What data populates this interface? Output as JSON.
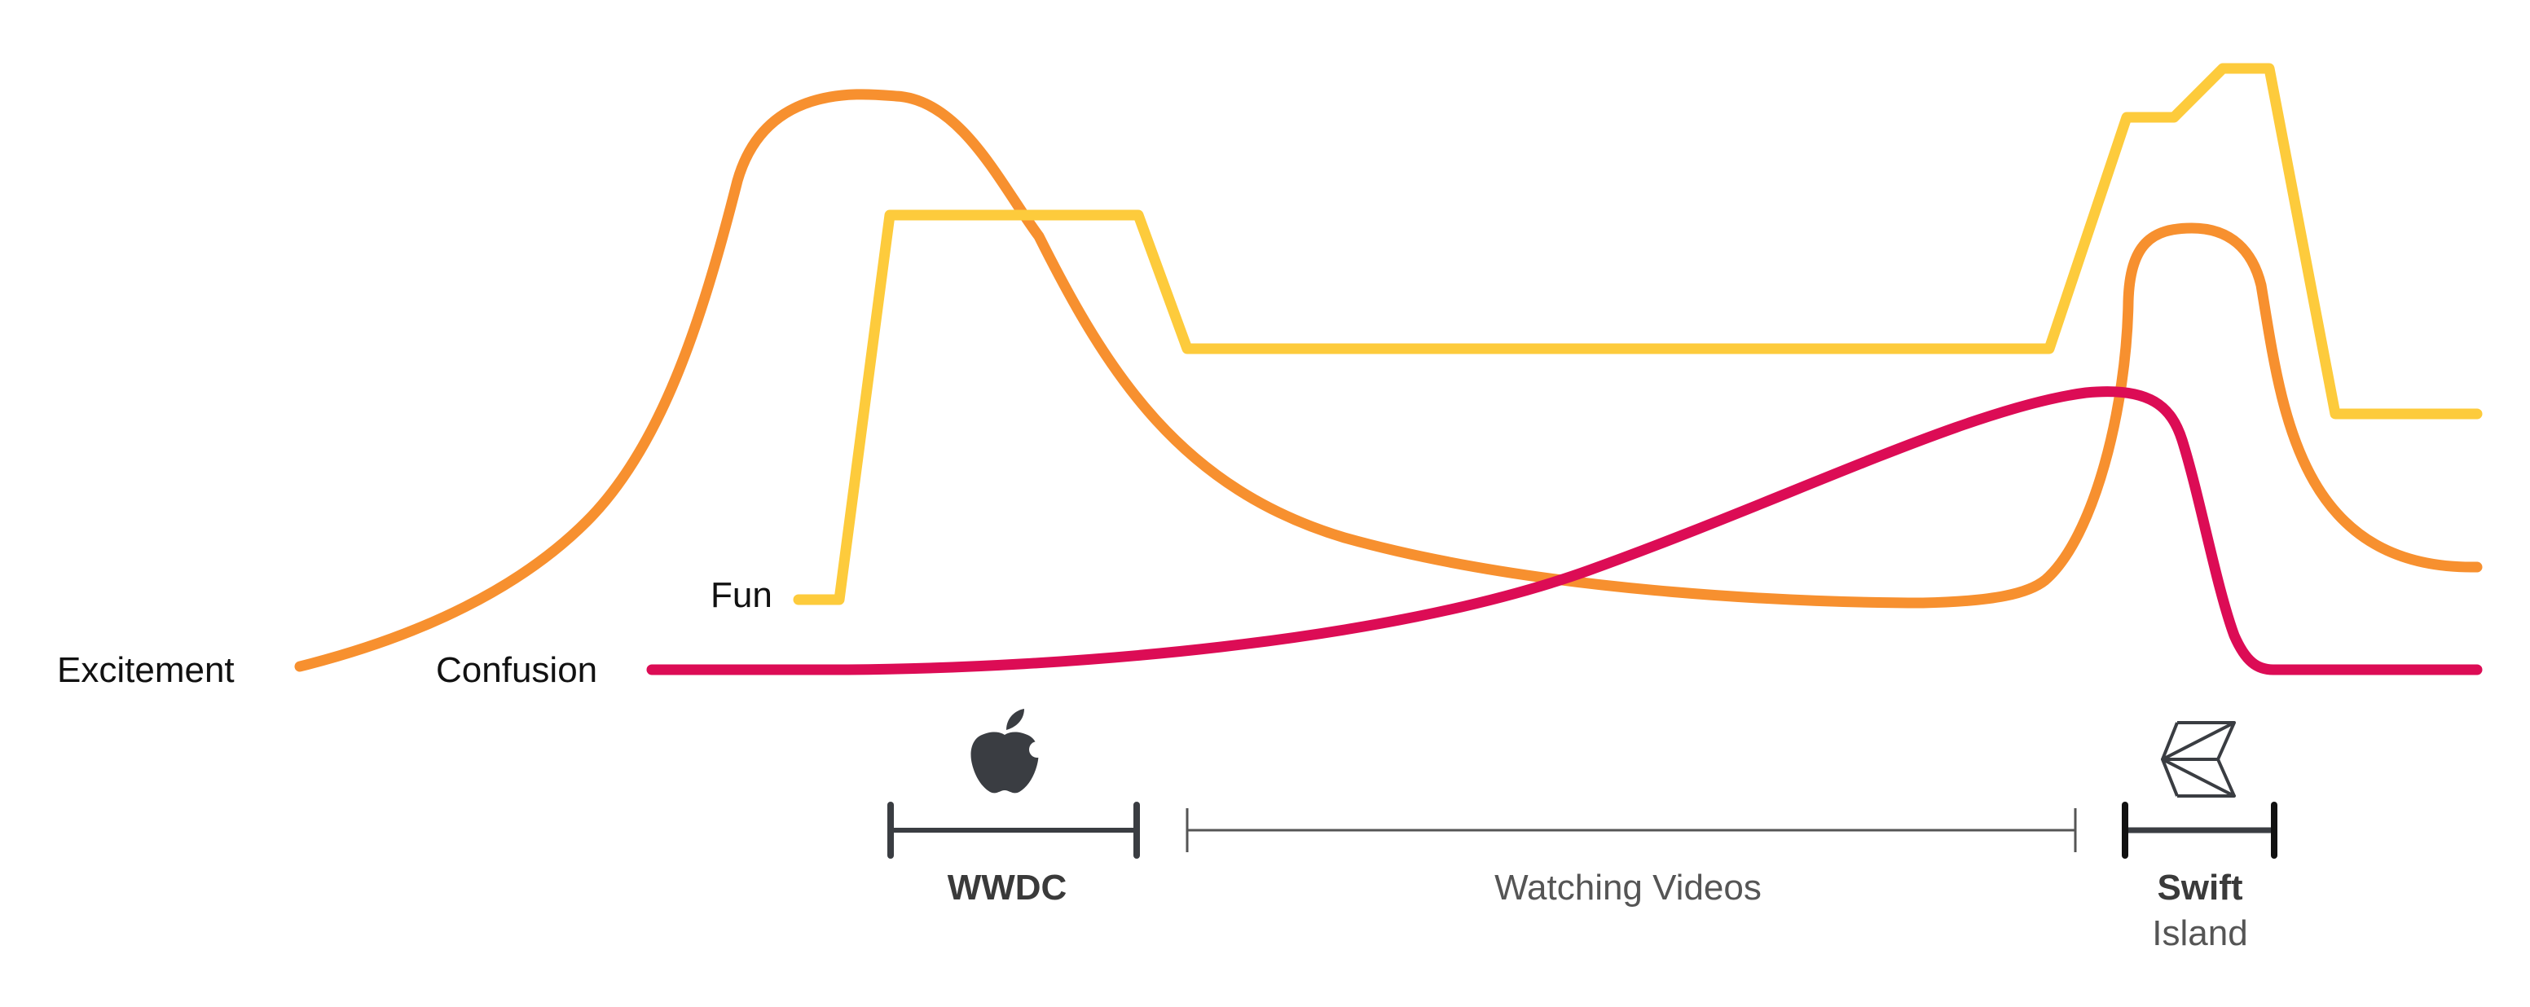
{
  "series": [
    {
      "key": "excitement",
      "label": "Excitement",
      "color": "#F7902F"
    },
    {
      "key": "fun",
      "label": "Fun",
      "color": "#FDCB3C"
    },
    {
      "key": "confusion",
      "label": "Confusion",
      "color": "#DC0C55"
    }
  ],
  "timeline": [
    {
      "key": "wwdc",
      "label": "WWDC",
      "icon": "apple-logo-icon"
    },
    {
      "key": "watching",
      "label": "Watching Videos"
    },
    {
      "key": "swift",
      "label": "Swift",
      "sublabel": "Island",
      "icon": "swift-island-logo-icon"
    }
  ],
  "colors": {
    "timeline_dark": "#3A3D42",
    "timeline_light": "#555555"
  }
}
